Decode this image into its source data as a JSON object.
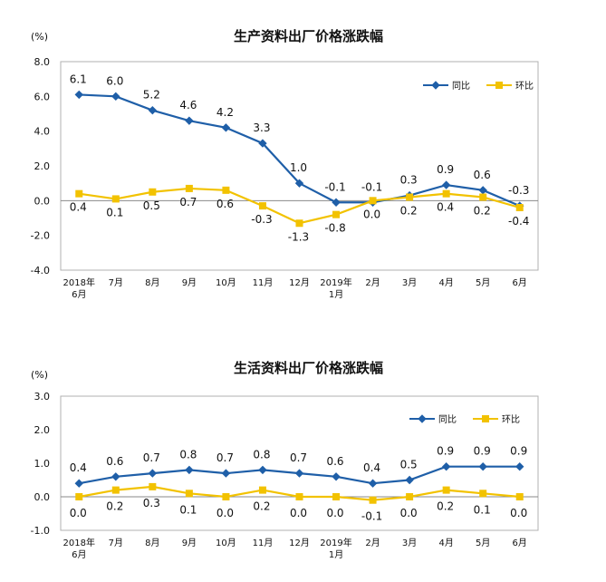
{
  "colors": {
    "yoy": "#1f5fa8",
    "mom": "#f2c200",
    "frame": "#b0b0b0",
    "grid": "#888888"
  },
  "chart_data": [
    {
      "type": "line",
      "title": "生产资料出厂价格涨跌幅",
      "unit_label": "(%)",
      "ylim": [
        -4.0,
        8.0
      ],
      "yticks": [
        "8.0",
        "6.0",
        "4.0",
        "2.0",
        "0.0",
        "-2.0",
        "-4.0"
      ],
      "ytick_values": [
        8,
        6,
        4,
        2,
        0,
        -2,
        -4
      ],
      "categories": [
        [
          "2018年",
          "6月"
        ],
        [
          "7月"
        ],
        [
          "8月"
        ],
        [
          "9月"
        ],
        [
          "10月"
        ],
        [
          "11月"
        ],
        [
          "12月"
        ],
        [
          "2019年",
          "1月"
        ],
        [
          "2月"
        ],
        [
          "3月"
        ],
        [
          "4月"
        ],
        [
          "5月"
        ],
        [
          "6月"
        ]
      ],
      "legend_position": "top-right",
      "series": [
        {
          "name": "同比",
          "color_key": "yoy",
          "marker": "diamond",
          "values": [
            6.1,
            6.0,
            5.2,
            4.6,
            4.2,
            3.3,
            1.0,
            -0.1,
            -0.1,
            0.3,
            0.9,
            0.6,
            -0.3
          ],
          "labels": [
            "6.1",
            "6.0",
            "5.2",
            "4.6",
            "4.2",
            "3.3",
            "1.0",
            "-0.1",
            "-0.1",
            "0.3",
            "0.9",
            "0.6",
            "-0.3"
          ]
        },
        {
          "name": "环比",
          "color_key": "mom",
          "marker": "square",
          "values": [
            0.4,
            0.1,
            0.5,
            0.7,
            0.6,
            -0.3,
            -1.3,
            -0.8,
            0.0,
            0.2,
            0.4,
            0.2,
            -0.4
          ],
          "labels": [
            "0.4",
            "0.1",
            "0.5",
            "0.7",
            "0.6",
            "-0.3",
            "-1.3",
            "-0.8",
            "0.0",
            "0.2",
            "0.4",
            "0.2",
            "-0.4"
          ]
        }
      ]
    },
    {
      "type": "line",
      "title": "生活资料出厂价格涨跌幅",
      "unit_label": "(%)",
      "ylim": [
        -1.0,
        3.0
      ],
      "yticks": [
        "3.0",
        "2.0",
        "1.0",
        "0.0",
        "-1.0"
      ],
      "ytick_values": [
        3,
        2,
        1,
        0,
        -1
      ],
      "categories": [
        [
          "2018年",
          "6月"
        ],
        [
          "7月"
        ],
        [
          "8月"
        ],
        [
          "9月"
        ],
        [
          "10月"
        ],
        [
          "11月"
        ],
        [
          "12月"
        ],
        [
          "2019年",
          "1月"
        ],
        [
          "2月"
        ],
        [
          "3月"
        ],
        [
          "4月"
        ],
        [
          "5月"
        ],
        [
          "6月"
        ]
      ],
      "legend_position": "top-right",
      "series": [
        {
          "name": "同比",
          "color_key": "yoy",
          "marker": "diamond",
          "values": [
            0.4,
            0.6,
            0.7,
            0.8,
            0.7,
            0.8,
            0.7,
            0.6,
            0.4,
            0.5,
            0.9,
            0.9,
            0.9
          ],
          "labels": [
            "0.4",
            "0.6",
            "0.7",
            "0.8",
            "0.7",
            "0.8",
            "0.7",
            "0.6",
            "0.4",
            "0.5",
            "0.9",
            "0.9",
            "0.9"
          ]
        },
        {
          "name": "环比",
          "color_key": "mom",
          "marker": "square",
          "values": [
            0.0,
            0.2,
            0.3,
            0.1,
            0.0,
            0.2,
            0.0,
            0.0,
            -0.1,
            0.0,
            0.2,
            0.1,
            0.0
          ],
          "labels": [
            "0.0",
            "0.2",
            "0.3",
            "0.1",
            "0.0",
            "0.2",
            "0.0",
            "0.0",
            "-0.1",
            "0.0",
            "0.2",
            "0.1",
            "0.0"
          ]
        }
      ]
    }
  ]
}
